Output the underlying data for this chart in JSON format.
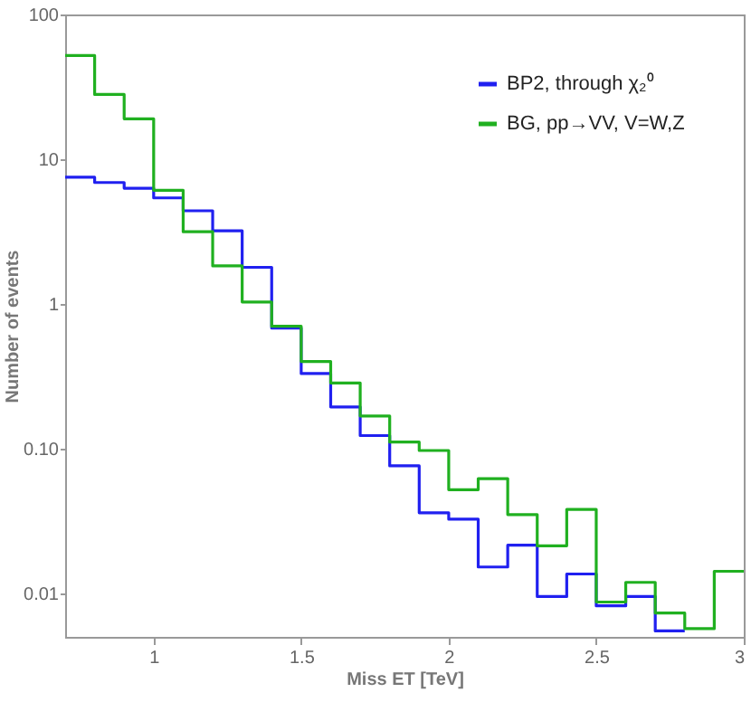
{
  "chart_data": {
    "type": "histogram",
    "xlabel": "Miss ET [TeV]",
    "ylabel": "Number of events",
    "bins": [
      0.7,
      0.8,
      0.9,
      1.0,
      1.1,
      1.2,
      1.3,
      1.4,
      1.5,
      1.6,
      1.7,
      1.8,
      1.9,
      2.0,
      2.1,
      2.2,
      2.3,
      2.4,
      2.5,
      2.6,
      2.7,
      2.8,
      2.9,
      3.0
    ],
    "series": [
      {
        "name": "BP2, through χ₂⁰",
        "color": "#2020f0",
        "bins": [
          0.7,
          0.8,
          0.9,
          1.0,
          1.1,
          1.2,
          1.3,
          1.4,
          1.5,
          1.6,
          1.7,
          1.8,
          1.9,
          2.0,
          2.1,
          2.2,
          2.3,
          2.4,
          2.5,
          2.6,
          2.7,
          2.8
        ],
        "values": [
          7.5,
          6.9,
          6.3,
          5.4,
          4.4,
          3.2,
          1.79,
          0.68,
          0.33,
          0.194,
          0.123,
          0.076,
          0.036,
          0.0325,
          0.0152,
          0.0215,
          0.0095,
          0.0136,
          0.0082,
          0.0095,
          0.0055
        ]
      },
      {
        "name": "BG, pp→VV, V=W,Z",
        "color": "#20b020",
        "values": [
          52,
          28,
          19,
          6.1,
          3.15,
          1.83,
          1.03,
          0.7,
          0.4,
          0.284,
          0.168,
          0.111,
          0.097,
          0.052,
          0.062,
          0.035,
          0.0213,
          0.038,
          0.0087,
          0.0119,
          0.0073,
          0.0057,
          0.0142
        ]
      }
    ],
    "xlim": [
      0.7,
      3.0
    ],
    "xticks": [
      1,
      1.5,
      2,
      2.5,
      3
    ],
    "ylim": [
      0.005,
      100
    ],
    "yticks": [
      0.01,
      {
        "value": 0.1,
        "label": "0.10"
      },
      1,
      10,
      100
    ],
    "log": "y",
    "grid": false,
    "legend": "top right"
  }
}
